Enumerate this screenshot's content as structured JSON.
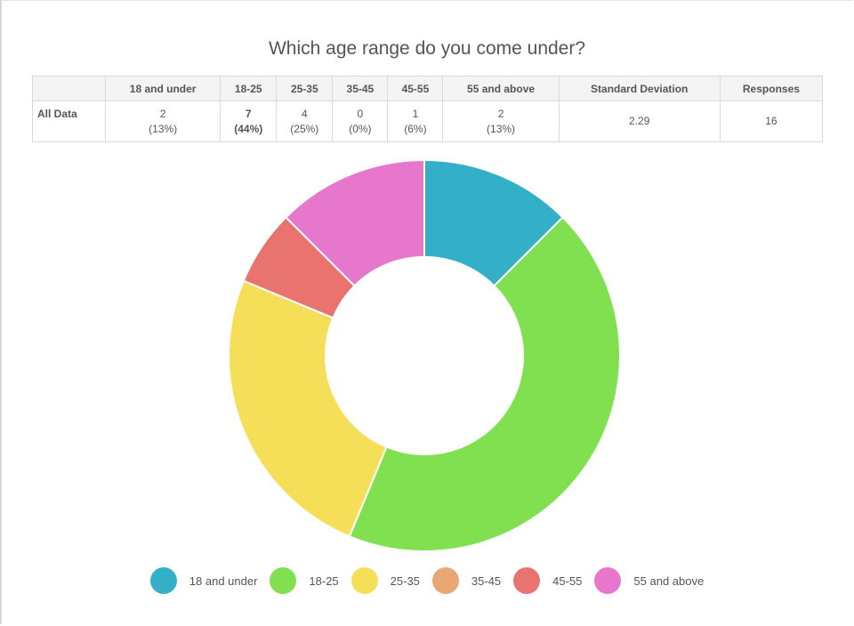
{
  "chart_data": {
    "type": "pie",
    "title": "Which age range do you come under?",
    "categories": [
      "18 and under",
      "18-25",
      "25-35",
      "35-45",
      "45-55",
      "55 and above"
    ],
    "values": [
      2,
      7,
      4,
      0,
      1,
      2
    ],
    "colors": [
      "#33b0c8",
      "#80e050",
      "#f6df58",
      "#e9a873",
      "#e8736f",
      "#e677cc"
    ],
    "legend_position": "bottom",
    "donut": true
  },
  "table": {
    "headers": [
      "",
      "18 and under",
      "18-25",
      "25-35",
      "35-45",
      "45-55",
      "55 and above",
      "Standard Deviation",
      "Responses"
    ],
    "row_label": "All Data",
    "counts": [
      "2",
      "7",
      "4",
      "0",
      "1",
      "2"
    ],
    "percents": [
      "(13%)",
      "(44%)",
      "(25%)",
      "(0%)",
      "(6%)",
      "(13%)"
    ],
    "std_dev": "2.29",
    "responses": "16"
  }
}
